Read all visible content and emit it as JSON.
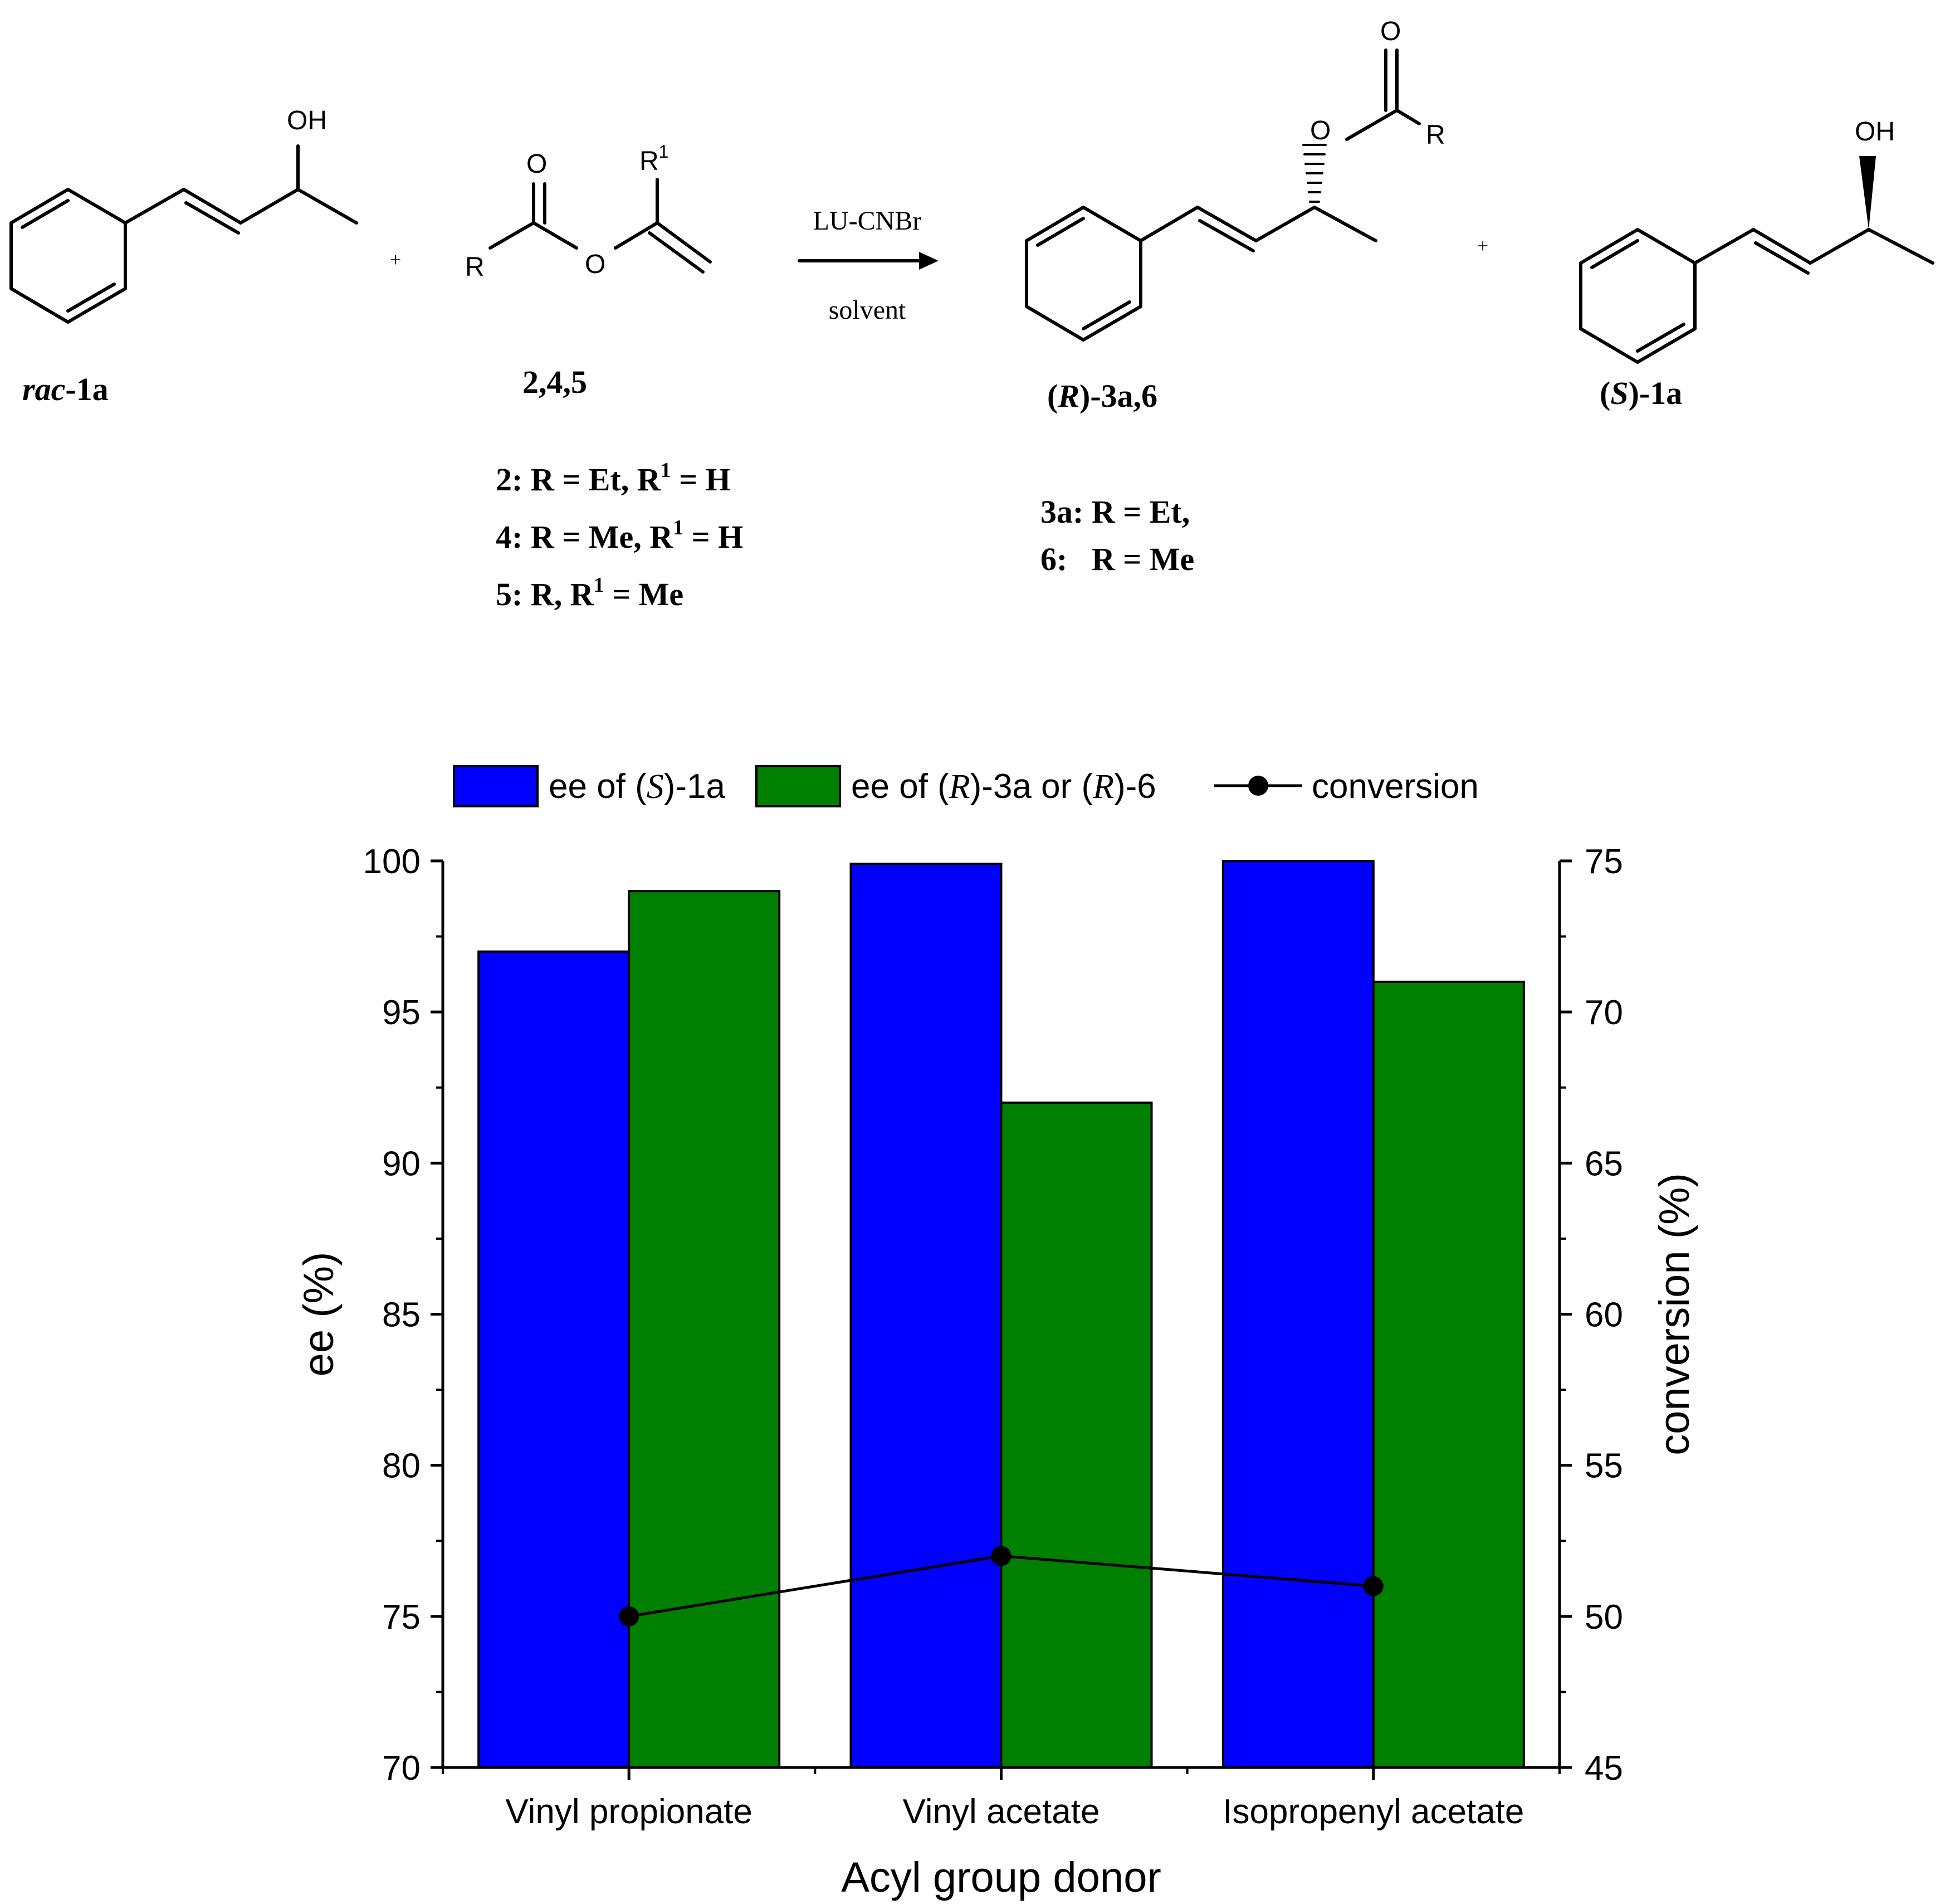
{
  "scheme": {
    "reagent": "LU-CNBr",
    "condition": "solvent",
    "plus": "+",
    "compounds": [
      {
        "id": "rac-1a",
        "label_prefix": "rac",
        "label_suffix": "-1a",
        "atom_labels": [
          "OH"
        ]
      },
      {
        "id": "acyl-donor",
        "label": "2,4,5",
        "atom_labels": [
          "O",
          "R",
          "O",
          "R",
          "1"
        ]
      },
      {
        "id": "product",
        "label_open": "(",
        "label_italic": "R",
        "label_close": ")-3a,6",
        "atom_labels": [
          "O",
          "O",
          "R"
        ]
      },
      {
        "id": "s-1a",
        "label_open": "(",
        "label_italic": "S",
        "label_close": ")-1a",
        "atom_labels": [
          "OH"
        ]
      }
    ],
    "donor_definitions": [
      {
        "pre": "2: R = Et, R",
        "sup": "1",
        "post": " = H"
      },
      {
        "pre": "4: R = Me, R",
        "sup": "1",
        "post": " = H"
      },
      {
        "pre": "5: R, R",
        "sup": "1",
        "post": " = Me"
      }
    ],
    "product_definitions": [
      "3a: R = Et,",
      "6:   R = Me"
    ]
  },
  "chart_data": {
    "type": "bar",
    "categories": [
      "Vinyl propionate",
      "Vinyl acetate",
      "Isopropenyl acetate"
    ],
    "xlabel": "Acyl group donor",
    "ylabel": "ee (%)",
    "y2label": "conversion (%)",
    "ylim": [
      70,
      100
    ],
    "y2lim": [
      45,
      75
    ],
    "yticks": [
      70,
      75,
      80,
      85,
      90,
      95,
      100
    ],
    "y2ticks": [
      45,
      50,
      55,
      60,
      65,
      70,
      75
    ],
    "grid": false,
    "legend_position": "top",
    "series": [
      {
        "name": "ee of (S)-1a",
        "name_parts": [
          "ee of (",
          "S",
          ")-1a"
        ],
        "kind": "bar",
        "axis": "left",
        "color": "#0000ff",
        "values": [
          97,
          99.9,
          100
        ]
      },
      {
        "name": "ee of (R)-3a or (R)-6",
        "name_parts": [
          "ee of (",
          "R",
          ")-3a or (",
          "R",
          ")-6"
        ],
        "kind": "bar",
        "axis": "left",
        "color": "#008000",
        "values": [
          99,
          92,
          96
        ]
      },
      {
        "name": "conversion",
        "kind": "line",
        "axis": "right",
        "color": "#000000",
        "values": [
          50,
          52,
          51
        ]
      }
    ]
  }
}
